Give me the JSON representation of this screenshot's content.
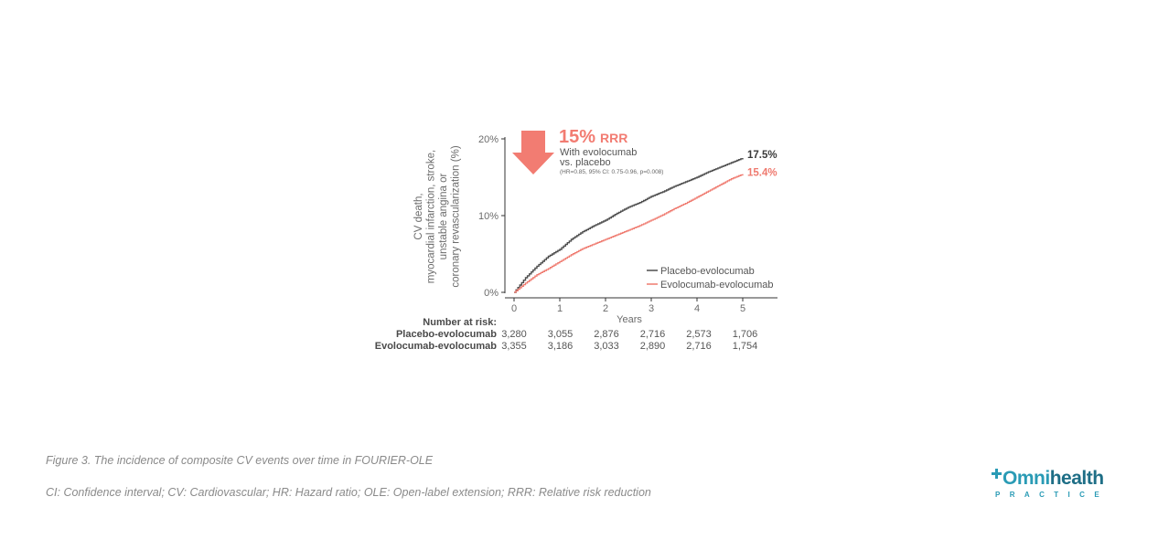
{
  "chart_data": {
    "type": "line",
    "title": "",
    "xlabel": "Years",
    "ylabel_lines": [
      "CV death,",
      "myocardial infarction, stroke,",
      "unstable angina or",
      "coronary revascularization (%)"
    ],
    "x_ticks": [
      "0",
      "1",
      "2",
      "3",
      "4",
      "5"
    ],
    "y_ticks": [
      "0%",
      "10%",
      "20%"
    ],
    "xlim": [
      0,
      5.8
    ],
    "ylim": [
      0,
      20
    ],
    "series": [
      {
        "name": "Placebo-evolocumab",
        "color": "#4d4d4d",
        "x": [
          0,
          0.25,
          0.5,
          0.75,
          1.0,
          1.25,
          1.5,
          1.75,
          2.0,
          2.25,
          2.5,
          2.75,
          3.0,
          3.25,
          3.5,
          3.75,
          4.0,
          4.25,
          4.5,
          4.75,
          5.0
        ],
        "y": [
          0,
          1.9,
          3.4,
          4.7,
          5.6,
          6.9,
          7.9,
          8.7,
          9.4,
          10.3,
          11.1,
          11.7,
          12.5,
          13.1,
          13.8,
          14.4,
          15.0,
          15.7,
          16.3,
          16.9,
          17.5
        ],
        "end_label": "17.5%"
      },
      {
        "name": "Evolocumab-evolocumab",
        "color": "#ef7a6f",
        "x": [
          0,
          0.25,
          0.5,
          0.75,
          1.0,
          1.25,
          1.5,
          1.75,
          2.0,
          2.25,
          2.5,
          2.75,
          3.0,
          3.25,
          3.5,
          3.75,
          4.0,
          4.25,
          4.5,
          4.75,
          5.0
        ],
        "y": [
          0,
          1.2,
          2.3,
          3.1,
          4.0,
          4.9,
          5.7,
          6.3,
          6.9,
          7.5,
          8.1,
          8.7,
          9.4,
          10.1,
          10.9,
          11.6,
          12.4,
          13.2,
          14.0,
          14.8,
          15.4
        ],
        "end_label": "15.4%"
      }
    ],
    "legend_position": "lower-right",
    "annotation": {
      "headline_value": "15%",
      "headline_unit": "RRR",
      "line1": "With evolocumab",
      "line2": "vs. placebo",
      "stats": "(HR=0.85, 95% CI: 0.75-0.96, p=0.008)",
      "accent_color": "#f27c72"
    },
    "number_at_risk": {
      "heading": "Number at risk:",
      "rows": [
        {
          "label": "Placebo-evolocumab",
          "values": [
            "3,280",
            "3,055",
            "2,876",
            "2,716",
            "2,573",
            "1,706"
          ]
        },
        {
          "label": "Evolocumab-evolocumab",
          "values": [
            "3,355",
            "3,186",
            "3,033",
            "2,890",
            "2,716",
            "1,754"
          ]
        }
      ]
    }
  },
  "captions": {
    "figure": "Figure 3. The incidence of composite CV events over time in FOURIER-OLE",
    "abbreviations": "CI: Confidence interval; CV: Cardiovascular; HR: Hazard ratio; OLE: Open-label extension; RRR: Relative risk reduction"
  },
  "logo": {
    "name_part1": "mni",
    "name_part2": "health",
    "tagline": "PRACTICE",
    "icon": "omnihealth-logo-icon"
  }
}
